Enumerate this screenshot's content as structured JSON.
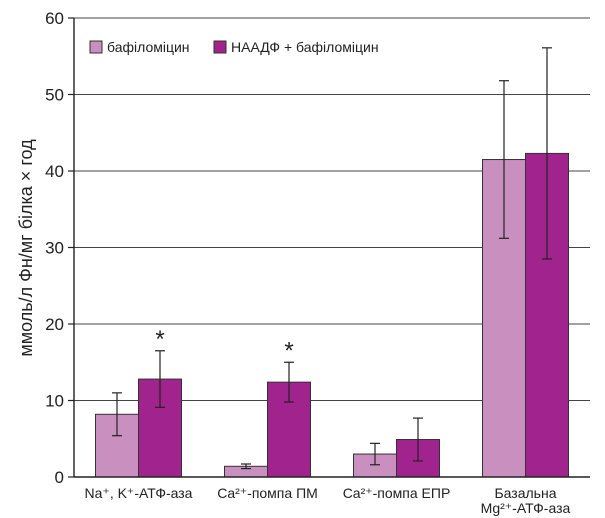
{
  "chart_data": {
    "type": "bar",
    "ylabel": "ммоль/л Фн/мг білка × год",
    "ylim": [
      0,
      60
    ],
    "yticks": [
      0,
      10,
      20,
      30,
      40,
      50,
      60
    ],
    "grid": true,
    "legend_position": "top-left",
    "categories": [
      {
        "line1": "Na⁺, K⁺-АТФ-аза",
        "line2": ""
      },
      {
        "line1": "Ca²⁺-помпа ПМ",
        "line2": ""
      },
      {
        "line1": "Ca²⁺-помпа ЕПР",
        "line2": ""
      },
      {
        "line1": "Базальна",
        "line2": "Mg²⁺-АТФ-аза"
      }
    ],
    "series": [
      {
        "name": "бафіломіцин",
        "color": "#c98fbe",
        "values": [
          8.2,
          1.4,
          3.0,
          41.5
        ],
        "errors": [
          2.8,
          0.3,
          1.4,
          10.3
        ]
      },
      {
        "name": "НААДФ + бафіломіцин",
        "color": "#a0238e",
        "values": [
          12.8,
          12.4,
          4.9,
          42.3
        ],
        "errors": [
          3.7,
          2.6,
          2.8,
          13.8
        ]
      }
    ],
    "annotations": [
      {
        "text": "*",
        "category": 0,
        "series": 1
      },
      {
        "text": "*",
        "category": 1,
        "series": 1
      }
    ]
  }
}
